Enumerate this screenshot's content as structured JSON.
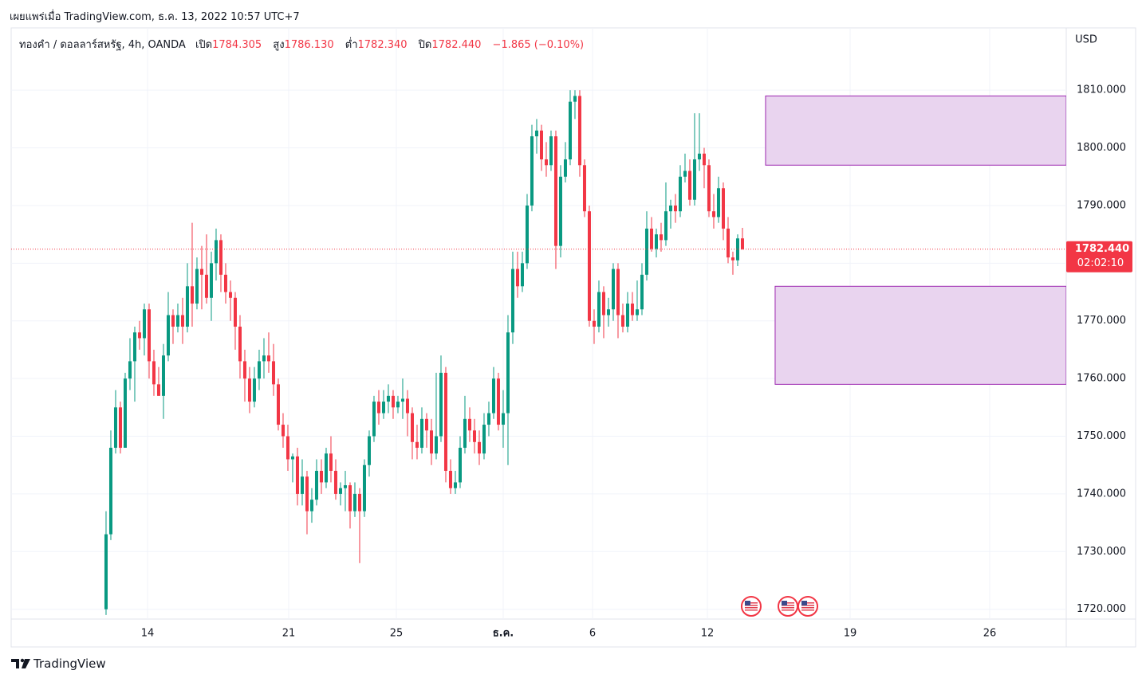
{
  "header": "เผยแพร่เมื่อ TradingView.com, ธ.ค. 13, 2022 10:57 UTC+7",
  "footer": "TradingView",
  "chart_data": {
    "type": "candlestick",
    "symbol": "ทองคำ / ดอลลาร์สหรัฐ, 4h, OANDA",
    "ohlc_names": [
      "เปิด",
      "สูง",
      "ต่ำ",
      "ปิด"
    ],
    "ohlc_labels": [
      "1784.305",
      "1786.130",
      "1782.340",
      "1782.440"
    ],
    "change_label": "−1.865 (−0.10%)",
    "currency": "USD",
    "up_color": "#089981",
    "down_color": "#f23645",
    "ylim": [
      1718.3,
      1820.8
    ],
    "yticks": [
      {
        "value": 1720,
        "label": "1720.000"
      },
      {
        "value": 1730,
        "label": "1730.000"
      },
      {
        "value": 1740,
        "label": "1740.000"
      },
      {
        "value": 1750,
        "label": "1750.000"
      },
      {
        "value": 1760,
        "label": "1760.000"
      },
      {
        "value": 1770,
        "label": "1770.000"
      },
      {
        "value": 1780,
        "label": "1780.000"
      },
      {
        "value": 1790,
        "label": "1790.000"
      },
      {
        "value": 1800,
        "label": "1800.000"
      },
      {
        "value": 1810,
        "label": "1810.000"
      }
    ],
    "xlim": [
      -19.83,
      200.67
    ],
    "xticks": [
      {
        "value": 8.67,
        "label": "14"
      },
      {
        "value": 38.17,
        "label": "21"
      },
      {
        "value": 60.67,
        "label": "25"
      },
      {
        "value": 83,
        "label": "ธ.ค."
      },
      {
        "value": 101.67,
        "label": "6"
      },
      {
        "value": 125.67,
        "label": "12"
      },
      {
        "value": 155.5,
        "label": "19"
      },
      {
        "value": 184.67,
        "label": "26"
      }
    ],
    "grid": true,
    "last_price_label": "1782.440",
    "countdown": "02:02:10",
    "zone_color": "#e9d4ef",
    "zone_border": "#9c27b0",
    "zones": [
      {
        "low": 1797,
        "high": 1809,
        "x_start": 137.83
      },
      {
        "low": 1759,
        "high": 1776,
        "x_start": 139.83
      }
    ],
    "events": [
      134.83,
      142.5,
      146.67
    ],
    "ohlc": [
      [
        1720,
        1737,
        1719,
        1733
      ],
      [
        1733,
        1751,
        1732,
        1748
      ],
      [
        1748,
        1758,
        1747,
        1755
      ],
      [
        1755,
        1756,
        1747,
        1748
      ],
      [
        1748,
        1761,
        1748,
        1760
      ],
      [
        1760,
        1767,
        1758,
        1763
      ],
      [
        1763,
        1769,
        1756,
        1768
      ],
      [
        1768,
        1770,
        1765,
        1767
      ],
      [
        1767,
        1773,
        1764,
        1772
      ],
      [
        1772,
        1773,
        1760,
        1763
      ],
      [
        1763,
        1765,
        1757,
        1759
      ],
      [
        1759,
        1762,
        1757,
        1757
      ],
      [
        1757,
        1766,
        1753,
        1764
      ],
      [
        1764,
        1775,
        1763,
        1771
      ],
      [
        1771,
        1772,
        1766,
        1769
      ],
      [
        1769,
        1773,
        1768,
        1771
      ],
      [
        1771,
        1774,
        1766,
        1769
      ],
      [
        1769,
        1780,
        1768,
        1776
      ],
      [
        1776,
        1787,
        1769,
        1773
      ],
      [
        1773,
        1781,
        1772,
        1779
      ],
      [
        1779,
        1783,
        1772,
        1778
      ],
      [
        1778,
        1785,
        1773,
        1774
      ],
      [
        1774,
        1782,
        1770,
        1780
      ],
      [
        1780,
        1786,
        1777,
        1784
      ],
      [
        1784,
        1785,
        1775,
        1778
      ],
      [
        1778,
        1780,
        1773,
        1775
      ],
      [
        1775,
        1777,
        1770,
        1774
      ],
      [
        1774,
        1775,
        1765,
        1769
      ],
      [
        1769,
        1771,
        1760,
        1763
      ],
      [
        1763,
        1765,
        1756,
        1760
      ],
      [
        1760,
        1762,
        1754,
        1756
      ],
      [
        1756,
        1762,
        1755,
        1760
      ],
      [
        1760,
        1765,
        1758,
        1763
      ],
      [
        1763,
        1767,
        1760,
        1764
      ],
      [
        1764,
        1768,
        1761,
        1763
      ],
      [
        1763,
        1766,
        1757,
        1759
      ],
      [
        1759,
        1760,
        1751,
        1752
      ],
      [
        1752,
        1754,
        1748,
        1750
      ],
      [
        1750,
        1752,
        1744,
        1746
      ],
      [
        1746,
        1747,
        1742,
        1746.5
      ],
      [
        1746.5,
        1748,
        1738,
        1740
      ],
      [
        1740,
        1746,
        1738,
        1743
      ],
      [
        1743,
        1744,
        1733,
        1737
      ],
      [
        1737,
        1741,
        1735,
        1739
      ],
      [
        1739,
        1746,
        1738,
        1744
      ],
      [
        1744,
        1746,
        1740,
        1742
      ],
      [
        1742,
        1748,
        1741,
        1747
      ],
      [
        1747,
        1750,
        1742,
        1744
      ],
      [
        1744,
        1746,
        1739,
        1740
      ],
      [
        1740,
        1742,
        1738,
        1741
      ],
      [
        1741,
        1744,
        1737,
        1741.5
      ],
      [
        1741.5,
        1742,
        1734,
        1737
      ],
      [
        1737,
        1742,
        1736,
        1740
      ],
      [
        1740,
        1741,
        1728,
        1737
      ],
      [
        1737,
        1746,
        1736,
        1745
      ],
      [
        1745,
        1751,
        1743,
        1750
      ],
      [
        1750,
        1757,
        1749,
        1756
      ],
      [
        1756,
        1758,
        1752,
        1754
      ],
      [
        1754,
        1758,
        1753,
        1756
      ],
      [
        1756,
        1759,
        1754,
        1757
      ],
      [
        1757,
        1758,
        1753,
        1755
      ],
      [
        1755,
        1757,
        1754,
        1756
      ],
      [
        1756,
        1760,
        1753,
        1756.5
      ],
      [
        1756.5,
        1758,
        1750,
        1754
      ],
      [
        1754,
        1755,
        1746,
        1749
      ],
      [
        1749,
        1752,
        1746,
        1748
      ],
      [
        1748,
        1755,
        1747,
        1753
      ],
      [
        1753,
        1754,
        1748,
        1751
      ],
      [
        1751,
        1753,
        1745,
        1747
      ],
      [
        1747,
        1761,
        1746,
        1750
      ],
      [
        1750,
        1764,
        1749,
        1761
      ],
      [
        1761,
        1762,
        1742,
        1744
      ],
      [
        1744,
        1746,
        1740,
        1741
      ],
      [
        1741,
        1744,
        1740,
        1742
      ],
      [
        1742,
        1750,
        1741,
        1748
      ],
      [
        1748,
        1757,
        1747,
        1753
      ],
      [
        1753,
        1755,
        1749,
        1751
      ],
      [
        1751,
        1753,
        1747,
        1749
      ],
      [
        1749,
        1751,
        1745,
        1747
      ],
      [
        1747,
        1754,
        1746,
        1752
      ],
      [
        1752,
        1756,
        1750,
        1754
      ],
      [
        1754,
        1762,
        1753,
        1760
      ],
      [
        1760,
        1761,
        1751,
        1752
      ],
      [
        1752,
        1758,
        1748,
        1754
      ],
      [
        1754,
        1771,
        1745,
        1768
      ],
      [
        1768,
        1782,
        1766,
        1779
      ],
      [
        1779,
        1782,
        1774,
        1776
      ],
      [
        1776,
        1782,
        1775,
        1780
      ],
      [
        1780,
        1792,
        1779,
        1790
      ],
      [
        1790,
        1804,
        1789,
        1802
      ],
      [
        1802,
        1805,
        1799,
        1803
      ],
      [
        1803,
        1804,
        1796,
        1798
      ],
      [
        1798,
        1801,
        1795,
        1797
      ],
      [
        1797,
        1803,
        1796,
        1802
      ],
      [
        1802,
        1803,
        1779,
        1783
      ],
      [
        1783,
        1797,
        1781,
        1795
      ],
      [
        1795,
        1801,
        1794,
        1798
      ],
      [
        1798,
        1810,
        1797,
        1808
      ],
      [
        1808,
        1810,
        1805,
        1809
      ],
      [
        1809,
        1810,
        1795,
        1797
      ],
      [
        1797,
        1798,
        1788,
        1789
      ],
      [
        1789,
        1790,
        1769,
        1770
      ],
      [
        1770,
        1772,
        1766,
        1769
      ],
      [
        1769,
        1777,
        1768,
        1775
      ],
      [
        1775,
        1776,
        1767,
        1771
      ],
      [
        1771,
        1774,
        1769,
        1772
      ],
      [
        1772,
        1780,
        1770,
        1779
      ],
      [
        1779,
        1780,
        1767,
        1771
      ],
      [
        1771,
        1773,
        1768,
        1769
      ],
      [
        1769,
        1775,
        1768,
        1773
      ],
      [
        1773,
        1775,
        1770,
        1771
      ],
      [
        1771,
        1777,
        1770,
        1772
      ],
      [
        1772,
        1780,
        1771,
        1778
      ],
      [
        1778,
        1789,
        1777,
        1786
      ],
      [
        1786,
        1788,
        1782,
        1782.5
      ],
      [
        1782.5,
        1786,
        1781,
        1785
      ],
      [
        1785,
        1787,
        1782,
        1784
      ],
      [
        1784,
        1794,
        1783,
        1789
      ],
      [
        1789,
        1791,
        1786,
        1790
      ],
      [
        1790,
        1792,
        1787,
        1789
      ],
      [
        1789,
        1797,
        1788,
        1795
      ],
      [
        1795,
        1799,
        1794,
        1796
      ],
      [
        1796,
        1798,
        1790,
        1791
      ],
      [
        1791,
        1806,
        1790,
        1798
      ],
      [
        1798,
        1806,
        1796,
        1799
      ],
      [
        1799,
        1800,
        1793,
        1797
      ],
      [
        1797,
        1798,
        1788,
        1789
      ],
      [
        1789,
        1792,
        1786,
        1788
      ],
      [
        1788,
        1795,
        1787,
        1793
      ],
      [
        1793,
        1794,
        1784,
        1786
      ],
      [
        1786,
        1788,
        1780,
        1781
      ],
      [
        1781,
        1782,
        1778,
        1780.5
      ],
      [
        1780.5,
        1785,
        1779.5,
        1784.3
      ],
      [
        1784.305,
        1786.13,
        1782.34,
        1782.44
      ]
    ]
  }
}
